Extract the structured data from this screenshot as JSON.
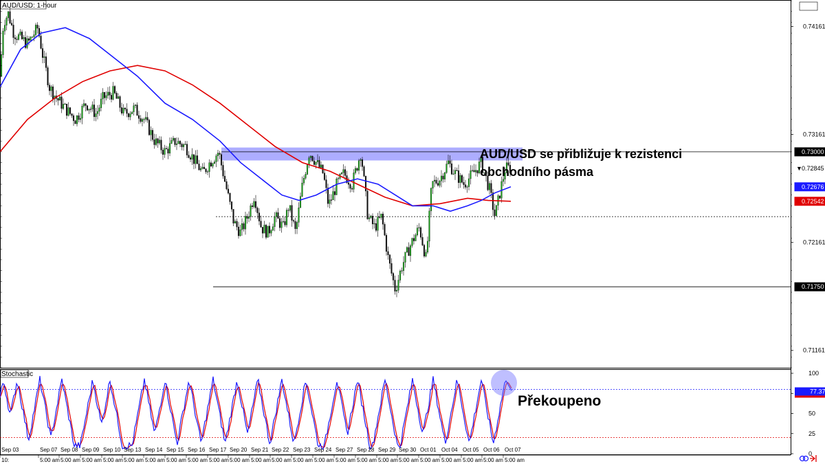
{
  "chart_data": {
    "type": "candlestick",
    "symbol_label": "AUD/USD: 1-hour",
    "price_axis": {
      "ylim": [
        0.71,
        0.744
      ],
      "ticks": [
        "0.74161",
        "0.73161",
        "0.72161",
        "0.71161"
      ]
    },
    "price_tags": [
      {
        "label": "0.73000",
        "value": 0.73,
        "bg": "#000000",
        "fg": "#ffffff",
        "marker": ""
      },
      {
        "label": "0.72845",
        "value": 0.72845,
        "bg": "#ffffff",
        "fg": "#000000",
        "marker": "▼"
      },
      {
        "label": "0.72676",
        "value": 0.72676,
        "bg": "#1a1aff",
        "fg": "#ffffff",
        "marker": ""
      },
      {
        "label": "0.72542",
        "value": 0.72542,
        "bg": "#e00000",
        "fg": "#ffffff",
        "marker": ""
      },
      {
        "label": "0.71750",
        "value": 0.7175,
        "bg": "#000000",
        "fg": "#ffffff",
        "marker": ""
      }
    ],
    "resistance_zone": {
      "from": 0.7292,
      "to": 0.7304,
      "color": "#6a6aff"
    },
    "levels": [
      {
        "name": "resistance",
        "value": 0.73,
        "style": "solid"
      },
      {
        "name": "support-dotted",
        "value": 0.724,
        "style": "dotted"
      },
      {
        "name": "support",
        "value": 0.7175,
        "style": "solid"
      }
    ],
    "price_path": [
      [
        0,
        0.737
      ],
      [
        5,
        0.742
      ],
      [
        12,
        0.7428
      ],
      [
        20,
        0.741
      ],
      [
        30,
        0.7405
      ],
      [
        40,
        0.74
      ],
      [
        55,
        0.7415
      ],
      [
        62,
        0.739
      ],
      [
        72,
        0.736
      ],
      [
        82,
        0.735
      ],
      [
        95,
        0.734
      ],
      [
        110,
        0.733
      ],
      [
        125,
        0.7345
      ],
      [
        140,
        0.7335
      ],
      [
        150,
        0.735
      ],
      [
        165,
        0.7355
      ],
      [
        180,
        0.7335
      ],
      [
        195,
        0.734
      ],
      [
        210,
        0.733
      ],
      [
        225,
        0.731
      ],
      [
        240,
        0.73
      ],
      [
        255,
        0.731
      ],
      [
        270,
        0.7305
      ],
      [
        280,
        0.7295
      ],
      [
        295,
        0.728
      ],
      [
        305,
        0.729
      ],
      [
        318,
        0.73
      ],
      [
        328,
        0.727
      ],
      [
        340,
        0.7235
      ],
      [
        350,
        0.7225
      ],
      [
        360,
        0.724
      ],
      [
        370,
        0.726
      ],
      [
        380,
        0.723
      ],
      [
        390,
        0.7225
      ],
      [
        400,
        0.724
      ],
      [
        412,
        0.723
      ],
      [
        420,
        0.725
      ],
      [
        430,
        0.7225
      ],
      [
        440,
        0.727
      ],
      [
        450,
        0.73
      ],
      [
        460,
        0.729
      ],
      [
        470,
        0.728
      ],
      [
        478,
        0.725
      ],
      [
        490,
        0.727
      ],
      [
        500,
        0.728
      ],
      [
        512,
        0.727
      ],
      [
        525,
        0.73
      ],
      [
        535,
        0.724
      ],
      [
        545,
        0.723
      ],
      [
        555,
        0.724
      ],
      [
        565,
        0.72
      ],
      [
        575,
        0.7172
      ],
      [
        585,
        0.7195
      ],
      [
        598,
        0.7215
      ],
      [
        610,
        0.723
      ],
      [
        620,
        0.72
      ],
      [
        628,
        0.727
      ],
      [
        640,
        0.7275
      ],
      [
        652,
        0.729
      ],
      [
        662,
        0.728
      ],
      [
        675,
        0.727
      ],
      [
        688,
        0.728
      ],
      [
        700,
        0.729
      ],
      [
        712,
        0.7265
      ],
      [
        720,
        0.724
      ],
      [
        728,
        0.7265
      ],
      [
        735,
        0.7285
      ],
      [
        743,
        0.72845
      ]
    ],
    "sma_blue": {
      "label": "0.72676",
      "color": "#1a1aff",
      "points": [
        [
          0,
          0.736
        ],
        [
          30,
          0.7395
        ],
        [
          60,
          0.741
        ],
        [
          95,
          0.7415
        ],
        [
          130,
          0.7405
        ],
        [
          160,
          0.739
        ],
        [
          200,
          0.737
        ],
        [
          240,
          0.7345
        ],
        [
          280,
          0.733
        ],
        [
          320,
          0.731
        ],
        [
          350,
          0.729
        ],
        [
          380,
          0.7275
        ],
        [
          410,
          0.726
        ],
        [
          435,
          0.7255
        ],
        [
          460,
          0.726
        ],
        [
          490,
          0.727
        ],
        [
          520,
          0.7275
        ],
        [
          550,
          0.727
        ],
        [
          575,
          0.726
        ],
        [
          600,
          0.725
        ],
        [
          630,
          0.725
        ],
        [
          655,
          0.7245
        ],
        [
          680,
          0.725
        ],
        [
          700,
          0.7255
        ],
        [
          720,
          0.7262
        ],
        [
          743,
          0.72676
        ]
      ]
    },
    "sma_red": {
      "label": "0.72542",
      "color": "#e00000",
      "points": [
        [
          0,
          0.73
        ],
        [
          40,
          0.733
        ],
        [
          80,
          0.735
        ],
        [
          120,
          0.7365
        ],
        [
          160,
          0.7375
        ],
        [
          200,
          0.738
        ],
        [
          240,
          0.7375
        ],
        [
          280,
          0.7362
        ],
        [
          320,
          0.7345
        ],
        [
          360,
          0.7325
        ],
        [
          400,
          0.7305
        ],
        [
          440,
          0.729
        ],
        [
          480,
          0.7282
        ],
        [
          520,
          0.727
        ],
        [
          560,
          0.7258
        ],
        [
          600,
          0.725
        ],
        [
          640,
          0.7252
        ],
        [
          680,
          0.7257
        ],
        [
          710,
          0.7255
        ],
        [
          743,
          0.72542
        ]
      ]
    },
    "stochastic": {
      "label": "Stochastic",
      "ylim": [
        0,
        100
      ],
      "ticks": [
        "100",
        "75",
        "50",
        "25",
        "0"
      ],
      "overbought": 80,
      "oversold": 20,
      "current_label": "77.37",
      "current_value": 77.37,
      "k_color": "#1a1aff",
      "d_color": "#e00000"
    },
    "x_ticks": [
      "Sep 03",
      "Sep 07",
      "Sep 08",
      "Sep 09",
      "Sep 10",
      "Sep 13",
      "Sep 14",
      "Sep 15",
      "Sep 16",
      "Sep 17",
      "Sep 20",
      "Sep 21",
      "Sep 22",
      "Sep 23",
      "Sep 24",
      "Sep 27",
      "Sep 28",
      "Sep 29",
      "Sep 30",
      "Oct 01",
      "Oct 04",
      "Oct 05",
      "Oct 06",
      "Oct 07"
    ],
    "x_time_label": "5:00 am",
    "x_first_time_label": "10:",
    "annotations": {
      "resistance_text_line1": "AUD/USD se přibližuje k rezistenci",
      "resistance_text_line2": "obchodního pásma",
      "overbought_text": "Překoupeno"
    }
  }
}
